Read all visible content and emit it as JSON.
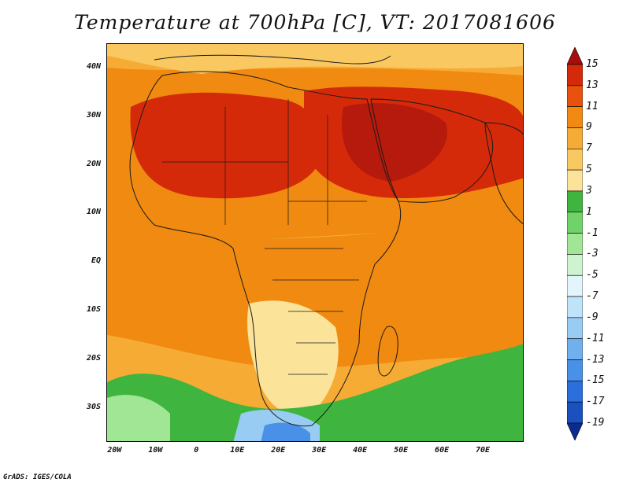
{
  "title": "Temperature at 700hPa [C], VT: 2017081606",
  "credit": "GrADS: IGES/COLA",
  "lat_axis": [
    {
      "label": "40N",
      "value": 40
    },
    {
      "label": "30N",
      "value": 30
    },
    {
      "label": "20N",
      "value": 20
    },
    {
      "label": "10N",
      "value": 10
    },
    {
      "label": "EQ",
      "value": 0
    },
    {
      "label": "10S",
      "value": -10
    },
    {
      "label": "20S",
      "value": -20
    },
    {
      "label": "30S",
      "value": -30
    }
  ],
  "lon_axis": [
    {
      "label": "20W",
      "value": -20
    },
    {
      "label": "10W",
      "value": -10
    },
    {
      "label": "0",
      "value": 0
    },
    {
      "label": "10E",
      "value": 10
    },
    {
      "label": "20E",
      "value": 20
    },
    {
      "label": "30E",
      "value": 30
    },
    {
      "label": "40E",
      "value": 40
    },
    {
      "label": "50E",
      "value": 50
    },
    {
      "label": "60E",
      "value": 60
    },
    {
      "label": "70E",
      "value": 70
    }
  ],
  "map_extent": {
    "lon_min": -22,
    "lon_max": 80,
    "lat_min": -37,
    "lat_max": 45
  },
  "colorbar": {
    "labels": [
      "15",
      "13",
      "11",
      "9",
      "7",
      "5",
      "3",
      "1",
      "-1",
      "-3",
      "-5",
      "-7",
      "-9",
      "-11",
      "-13",
      "-15",
      "-17",
      "-19"
    ],
    "colors": [
      "#a50f0f",
      "#d42a0a",
      "#e8520c",
      "#f08a10",
      "#f6ab35",
      "#f9c860",
      "#fbe39a",
      "#3fb540",
      "#6fd36a",
      "#a0e695",
      "#cff3cf",
      "#e4f4fb",
      "#bfe3f8",
      "#98ccf3",
      "#70b0ee",
      "#4890e8",
      "#2a6fdc",
      "#1a50c0",
      "#0c2b90"
    ]
  },
  "colors": {
    "land_outline": "#1a1a1a",
    "hot": "#d42a0a",
    "warm": "#f08a10",
    "mild": "#f6ab35",
    "cool": "#6fd36a",
    "cold": "#70b0ee"
  }
}
